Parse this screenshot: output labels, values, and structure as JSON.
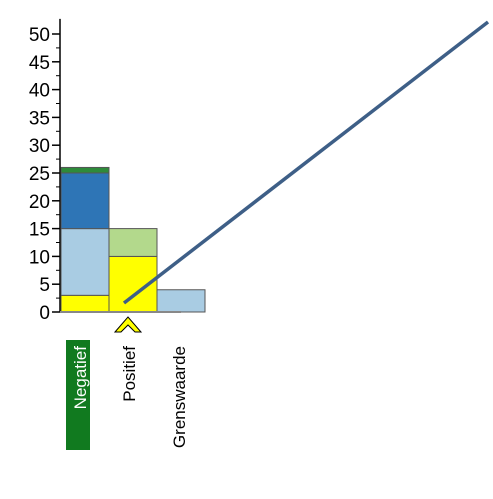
{
  "chart_data": {
    "type": "bar",
    "stacked": true,
    "categories": [
      "Negatief",
      "Positief",
      "Grenswaarde"
    ],
    "selected_category": "Negatief",
    "marker_category": "Positief",
    "ylim": [
      0,
      52
    ],
    "yticks": [
      0,
      5,
      10,
      15,
      20,
      25,
      30,
      35,
      40,
      45,
      50
    ],
    "grid": false,
    "segments": [
      {
        "category": "Negatief",
        "from": 0,
        "to": 3,
        "color": "#ffff00"
      },
      {
        "category": "Negatief",
        "from": 3,
        "to": 15,
        "color": "#a9cce3"
      },
      {
        "category": "Negatief",
        "from": 15,
        "to": 25,
        "color": "#2e75b6"
      },
      {
        "category": "Negatief",
        "from": 25,
        "to": 26,
        "color": "#2e8b3a"
      },
      {
        "category": "Positief",
        "from": 0,
        "to": 10,
        "color": "#ffff00"
      },
      {
        "category": "Positief",
        "from": 10,
        "to": 15,
        "color": "#b3d98c"
      },
      {
        "category": "Grenswaarde",
        "from": 0,
        "to": 4,
        "color": "#a9cce3"
      }
    ],
    "colors": {
      "selected_label_bg": "#117a1f",
      "marker": "#ffff00",
      "diagonal_line": "#3e5f87",
      "bar_outline": "#555555"
    }
  }
}
